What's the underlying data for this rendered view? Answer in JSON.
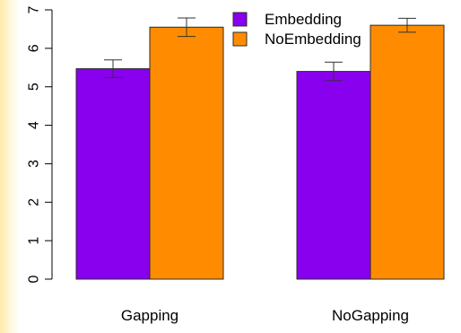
{
  "chart_data": {
    "type": "bar",
    "categories": [
      "Gapping",
      "NoGapping"
    ],
    "series": [
      {
        "name": "Embedding",
        "values": [
          5.47,
          5.4
        ],
        "error": [
          0.23,
          0.24
        ],
        "color": "#8800ee"
      },
      {
        "name": "NoEmbedding",
        "values": [
          6.55,
          6.6
        ],
        "error": [
          0.24,
          0.18
        ],
        "color": "#ff8c00"
      }
    ],
    "yticks": [
      "0",
      "1",
      "2",
      "3",
      "4",
      "5",
      "6",
      "7"
    ],
    "ylim": [
      0,
      7
    ],
    "legend": "top-right",
    "grid": false
  }
}
